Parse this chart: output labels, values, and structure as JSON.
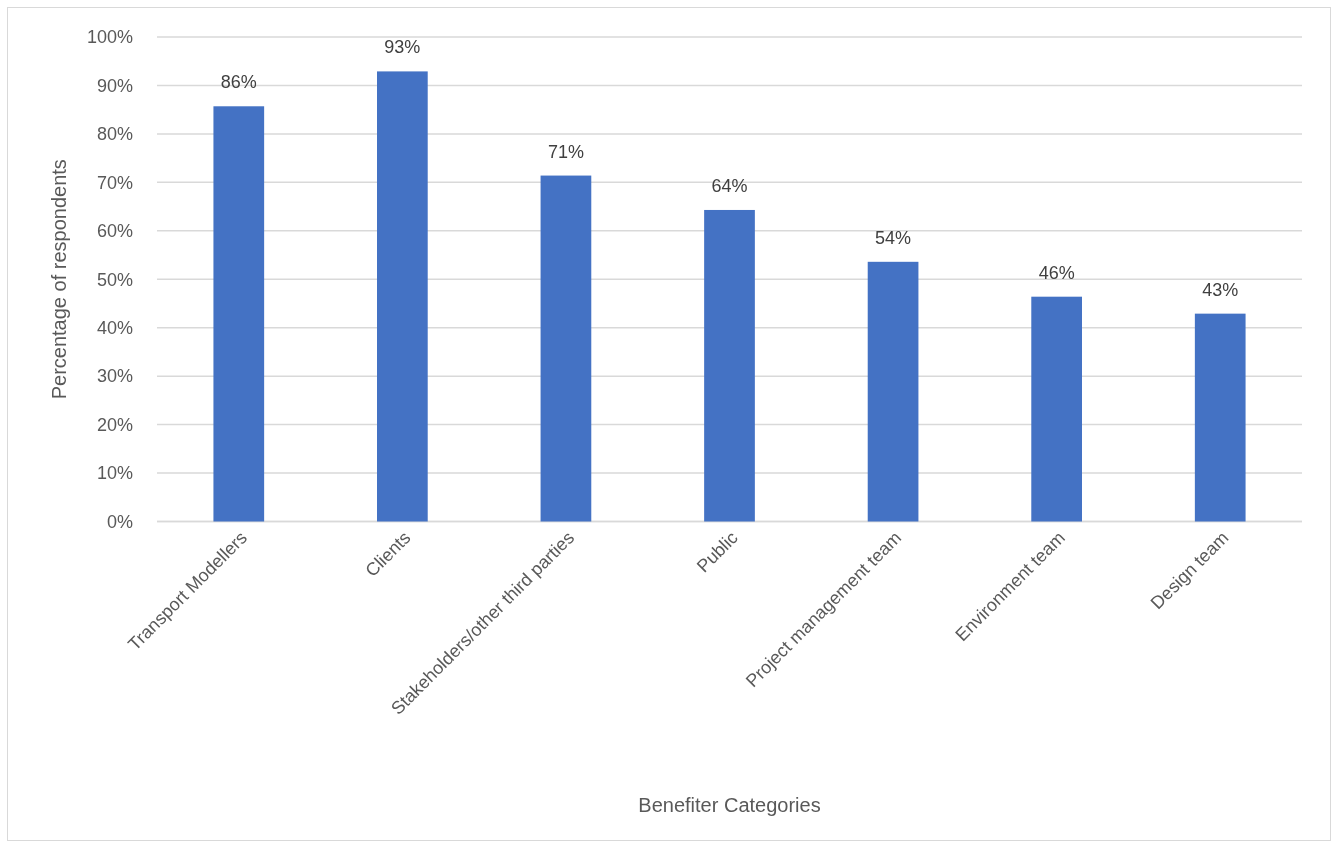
{
  "chart_data": {
    "type": "bar",
    "xlabel": "Benefiter Categories",
    "ylabel": "Percentage of respondents",
    "categories": [
      "Transport Modellers",
      "Clients",
      "Stakeholders/other third parties",
      "Public",
      "Project management team",
      "Environment team",
      "Design team"
    ],
    "values": [
      85.7,
      92.9,
      71.4,
      64.3,
      53.6,
      46.4,
      42.9
    ],
    "value_labels": [
      "86%",
      "93%",
      "71%",
      "64%",
      "54%",
      "46%",
      "43%"
    ],
    "color": "#4472c4",
    "ylim": [
      0,
      100
    ],
    "yticks": [
      {
        "value": 0,
        "label": "0%"
      },
      {
        "value": 10,
        "label": "10%"
      },
      {
        "value": 20,
        "label": "20%"
      },
      {
        "value": 30,
        "label": "30%"
      },
      {
        "value": 40,
        "label": "40%"
      },
      {
        "value": 50,
        "label": "50%"
      },
      {
        "value": 60,
        "label": "60%"
      },
      {
        "value": 70,
        "label": "70%"
      },
      {
        "value": 80,
        "label": "80%"
      },
      {
        "value": 90,
        "label": "90%"
      },
      {
        "value": 100,
        "label": "100%"
      }
    ],
    "grid": "y"
  }
}
